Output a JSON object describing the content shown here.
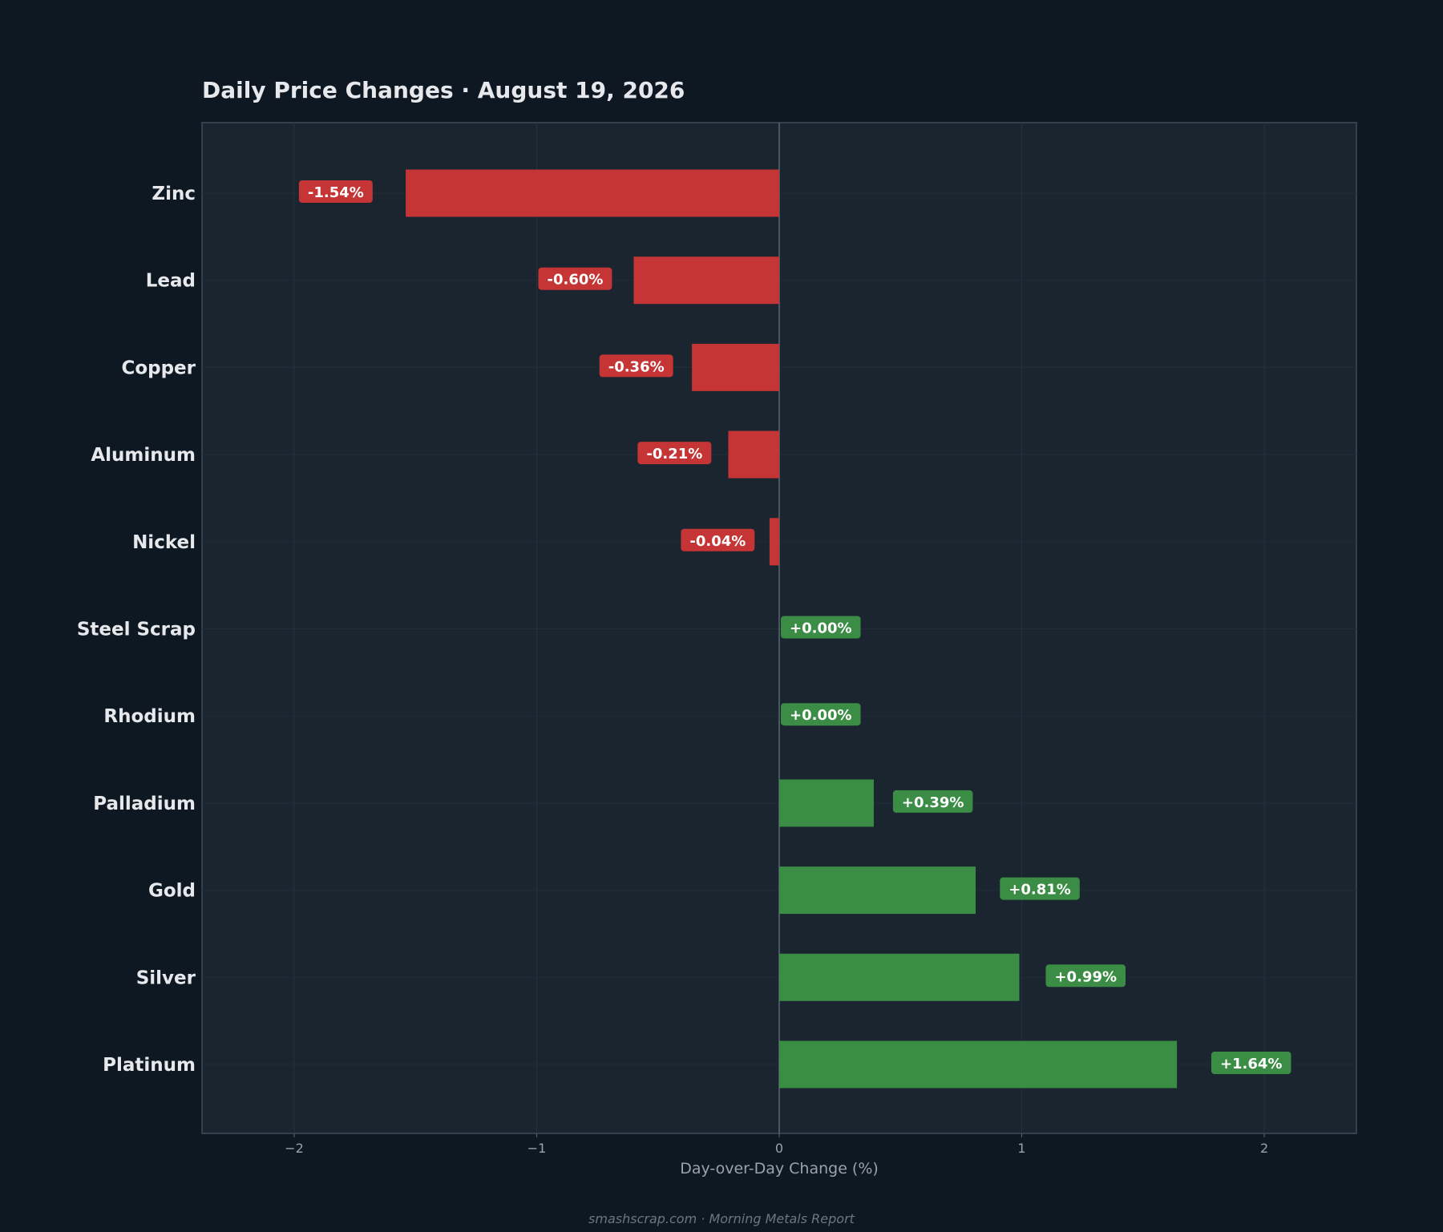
{
  "chart_data": {
    "type": "bar",
    "orientation": "horizontal",
    "title": "Daily Price Changes  ·  August 19, 2026",
    "xlabel": "Day-over-Day Change (%)",
    "ylabel": "",
    "xlim": [
      -2.38,
      2.38
    ],
    "xticks": [
      -2,
      -1,
      0,
      1,
      2
    ],
    "xtick_labels": [
      "−2",
      "−1",
      "0",
      "1",
      "2"
    ],
    "grid": true,
    "legend": "none",
    "categories": [
      "Zinc",
      "Lead",
      "Copper",
      "Aluminum",
      "Nickel",
      "Steel Scrap",
      "Rhodium",
      "Palladium",
      "Gold",
      "Silver",
      "Platinum"
    ],
    "values": [
      -1.54,
      -0.6,
      -0.36,
      -0.21,
      -0.04,
      0.0,
      0.0,
      0.39,
      0.81,
      0.99,
      1.64
    ],
    "value_labels": [
      "-1.54%",
      "-0.60%",
      "-0.36%",
      "-0.21%",
      "-0.04%",
      "+0.00%",
      "+0.00%",
      "+0.39%",
      "+0.81%",
      "+0.99%",
      "+1.64%"
    ],
    "colors": {
      "negative": "#c53535",
      "positive": "#3b8c44",
      "plot_background": "#1b2530",
      "page_background": "#0e1822",
      "frame": "#3e4b58",
      "zero_line": "#5b6774"
    }
  },
  "footer": "smashscrap.com  ·  Morning Metals Report"
}
